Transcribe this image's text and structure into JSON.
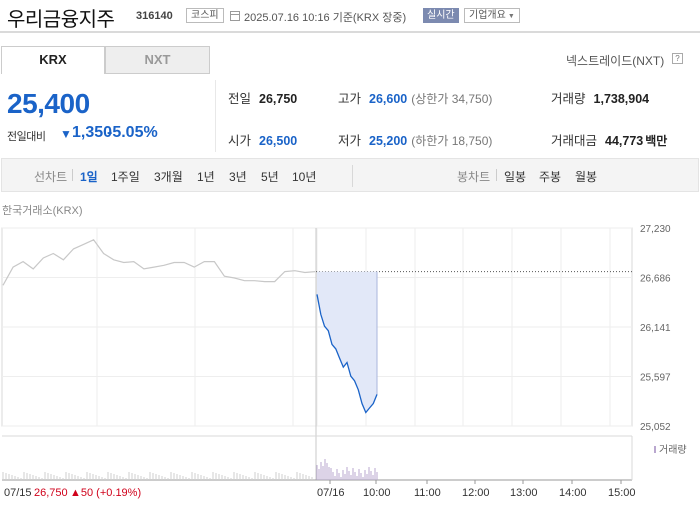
{
  "header": {
    "name": "우리금융지주",
    "code": "316140",
    "market": "코스피",
    "datetime": "2025.07.16 10:16 기준(KRX 장중)",
    "realtime": "실시간",
    "overview": "기업개요"
  },
  "exchange_tabs": [
    "KRX",
    "NXT"
  ],
  "nextrade_link": "넥스트레이드(NXT)",
  "help_icon_text": "?",
  "price": {
    "current": "25,400",
    "change_label": "전일대비",
    "change": "1,350",
    "change_rate": "-5.05%"
  },
  "stats": {
    "prev_label": "전일",
    "prev": "26,750",
    "open_label": "시가",
    "open": "26,500",
    "high_label": "고가",
    "high": "26,600",
    "upper_limit": "(상한가 34,750)",
    "low_label": "저가",
    "low": "25,200",
    "lower_limit": "(하한가 18,750)",
    "volume_label": "거래량",
    "volume": "1,738,904",
    "amount_label": "거래대금",
    "amount": "44,773",
    "amount_unit": "백만"
  },
  "periods": {
    "line_label": "선차트",
    "items": [
      "1일",
      "1주일",
      "3개월",
      "1년",
      "3년",
      "5년",
      "10년"
    ],
    "active": "1일",
    "candle_label": "봉차트",
    "candle_items": [
      "일봉",
      "주봉",
      "월봉"
    ]
  },
  "chart_source": "한국거래소(KRX)",
  "volume_legend": "거래량",
  "bottom_prev": {
    "date": "07/15",
    "price": "26,750",
    "change": "▲50 (+0.19%)"
  },
  "colors": {
    "blue": "#1a63c8",
    "red": "#d0021b",
    "prev_line": "#c8c8c8",
    "fill": "#e2e8f8",
    "volume": "#b9a7cf"
  },
  "chart_data": {
    "type": "line",
    "y_ticks": [
      "27,230",
      "26,686",
      "26,141",
      "25,597",
      "25,052"
    ],
    "ylim": [
      25052,
      27230
    ],
    "x_ticks": [
      "07/15",
      "07/16",
      "10:00",
      "11:00",
      "12:00",
      "13:00",
      "14:00",
      "15:00"
    ],
    "reference_price": 26750,
    "series": [
      {
        "day": "07/15",
        "values": [
          26600,
          26800,
          26860,
          26780,
          26900,
          26950,
          26880,
          27000,
          27050,
          27100,
          26950,
          26880,
          26850,
          26860,
          26780,
          26800,
          26820,
          26850,
          26850,
          26800,
          26860,
          26860,
          26700,
          26680,
          26650,
          26650,
          26640,
          26640,
          26750,
          26760,
          26740,
          26750
        ]
      },
      {
        "day": "07/16",
        "values": [
          26500,
          26280,
          26150,
          26100,
          25950,
          25900,
          25800,
          25700,
          25750,
          25600,
          25550,
          25450,
          25300,
          25200,
          25250,
          25300,
          25400
        ]
      }
    ]
  }
}
